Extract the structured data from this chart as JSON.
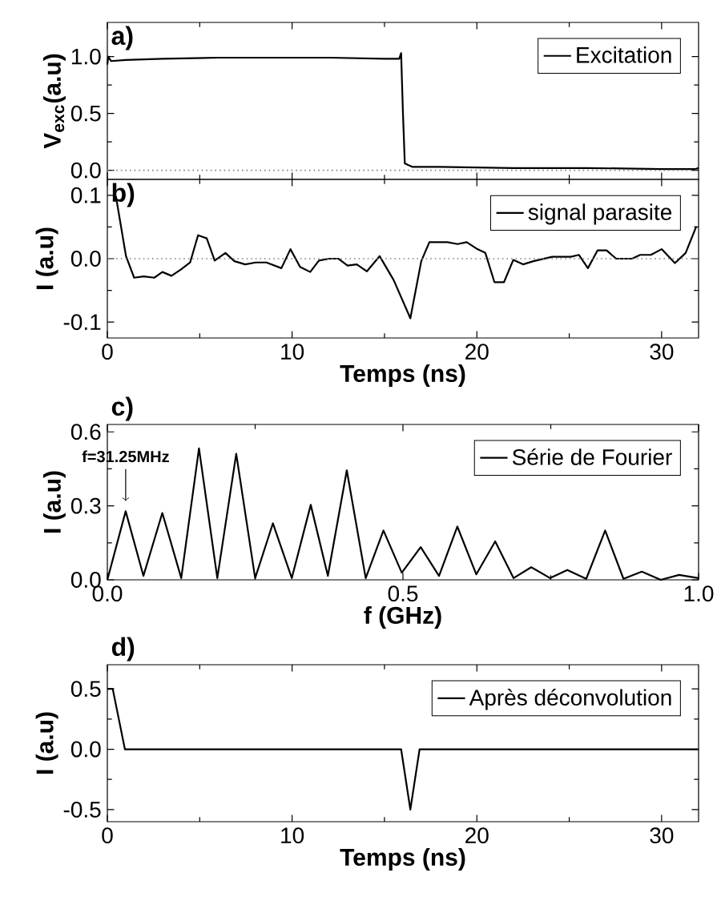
{
  "chart_data": [
    {
      "type": "line",
      "ylabel": "V$_{exc}$(a.u)",
      "annotations": [
        "a)"
      ],
      "xlim": [
        0,
        32
      ],
      "ylim": [
        -0.08,
        1.3
      ],
      "xticks": [
        0,
        10,
        20,
        30
      ],
      "yticks": [
        {
          "value": 0,
          "label": "0.0"
        },
        {
          "value": 0.5,
          "label": "0.5"
        },
        {
          "value": 1,
          "label": "1.0"
        }
      ],
      "tick_labels": "y",
      "legend": "top right",
      "grid": false,
      "ref_lines": [
        {
          "axis": "y",
          "value": 0,
          "color": "#808080",
          "line_style": "dotted"
        }
      ],
      "series": [
        {
          "name": "Excitation",
          "color": "#000000",
          "x": [
            0,
            0.05,
            0.2,
            1,
            3,
            6,
            9,
            12,
            15,
            15.8,
            15.9,
            16.0,
            16.1,
            16.5,
            18,
            22,
            26,
            30,
            31.8,
            32
          ],
          "values": [
            0.93,
            1.0,
            0.96,
            0.97,
            0.98,
            0.99,
            0.99,
            0.99,
            0.98,
            0.98,
            1.03,
            0.5,
            0.06,
            0.03,
            0.03,
            0.02,
            0.02,
            0.01,
            0.01,
            0.02
          ]
        }
      ]
    },
    {
      "type": "line",
      "xlabel": "Temps (ns)",
      "ylabel": "I (a.u)",
      "annotations": [
        "b)"
      ],
      "xlim": [
        0,
        32
      ],
      "ylim": [
        -0.125,
        0.125
      ],
      "xticks": [
        0,
        10,
        20,
        30
      ],
      "yticks": [
        -0.1,
        {
          "value": 0,
          "label": "0.0"
        },
        0.1
      ],
      "legend": "top right",
      "grid": false,
      "ref_lines": [
        {
          "axis": "y",
          "value": 0,
          "color": "#808080",
          "line_style": "dotted"
        }
      ],
      "series": [
        {
          "name": "signal parasite",
          "color": "#000000",
          "x": [
            0.46,
            1.01,
            1.45,
            1.97,
            2.54,
            2.98,
            3.47,
            3.99,
            4.48,
            4.91,
            5.38,
            5.81,
            6.39,
            6.88,
            7.46,
            8.03,
            8.61,
            9.42,
            9.91,
            10.43,
            10.98,
            11.45,
            12,
            12.5,
            13.0,
            13.5,
            14.05,
            14.74,
            15.5,
            16.4,
            16.99,
            17.43,
            18.4,
            18.96,
            19.45,
            20.03,
            20.46,
            20.95,
            21.47,
            21.97,
            22.5,
            23.06,
            24.08,
            25.09,
            25.52,
            26.01,
            26.53,
            27.02,
            27.54,
            28.4,
            28.84,
            29.42,
            30,
            30.72,
            31.3,
            31.88
          ],
          "values": [
            0.099,
            0.004,
            -0.03,
            -0.028,
            -0.03,
            -0.021,
            -0.027,
            -0.017,
            -0.006,
            0.037,
            0.032,
            -0.003,
            0.009,
            -0.004,
            -0.009,
            -0.006,
            -0.006,
            -0.015,
            0.015,
            -0.013,
            -0.021,
            -0.003,
            0,
            0,
            -0.011,
            -0.009,
            -0.02,
            0.004,
            -0.034,
            -0.094,
            -0.004,
            0.026,
            0.026,
            0.023,
            0.026,
            0.015,
            0.009,
            -0.037,
            -0.037,
            -0.002,
            -0.009,
            -0.004,
            0.003,
            0.003,
            0.006,
            -0.015,
            0.013,
            0.013,
            0,
            0,
            0.006,
            0.006,
            0.015,
            -0.007,
            0.009,
            0.051
          ]
        }
      ]
    },
    {
      "type": "line",
      "xlabel": "f (GHz)",
      "ylabel": "I (a.u)",
      "annotations": [
        "c)",
        {
          "text": "f=31.25MHz",
          "x": 0.031,
          "y": 0.28
        }
      ],
      "xlim": [
        0,
        1
      ],
      "ylim": [
        0,
        0.63
      ],
      "xticks": [
        {
          "value": 0,
          "label": "0.0"
        },
        0.5,
        {
          "value": 1,
          "label": "1.0"
        }
      ],
      "yticks": [
        {
          "value": 0,
          "label": "0.0"
        },
        0.3,
        0.6
      ],
      "legend": "top right",
      "grid": false,
      "series": [
        {
          "name": "Série de Fourier",
          "color": "#000000",
          "x": [
            0,
            0.031,
            0.061,
            0.093,
            0.125,
            0.155,
            0.186,
            0.218,
            0.25,
            0.28,
            0.312,
            0.344,
            0.373,
            0.405,
            0.437,
            0.467,
            0.498,
            0.53,
            0.561,
            0.592,
            0.624,
            0.656,
            0.687,
            0.717,
            0.749,
            0.778,
            0.81,
            0.842,
            0.873,
            0.904,
            0.936,
            0.967,
            1.0
          ],
          "values": [
            0,
            0.278,
            0.016,
            0.271,
            0.007,
            0.533,
            0.007,
            0.511,
            0.007,
            0.229,
            0.007,
            0.304,
            0.016,
            0.444,
            0.007,
            0.2,
            0.029,
            0.133,
            0.016,
            0.216,
            0.022,
            0.156,
            0.007,
            0.051,
            0.007,
            0.04,
            0.004,
            0.2,
            0.004,
            0.033,
            0,
            0.02,
            0.007
          ]
        }
      ]
    },
    {
      "type": "line",
      "xlabel": "Temps (ns)",
      "ylabel": "I (a.u)",
      "annotations": [
        "d)"
      ],
      "xlim": [
        0,
        32
      ],
      "ylim": [
        -0.6,
        0.7
      ],
      "xticks": [
        0,
        10,
        20,
        30
      ],
      "yticks": [
        -0.5,
        {
          "value": 0,
          "label": "0.0"
        },
        0.5
      ],
      "legend": "top right",
      "grid": false,
      "series": [
        {
          "name": "Après déconvolution",
          "color": "#000000",
          "x": [
            0,
            0.29,
            0.95,
            15.9,
            16.4,
            16.9,
            32
          ],
          "values": [
            0.5,
            0.5,
            0,
            0,
            -0.5,
            0,
            0
          ]
        }
      ]
    }
  ]
}
